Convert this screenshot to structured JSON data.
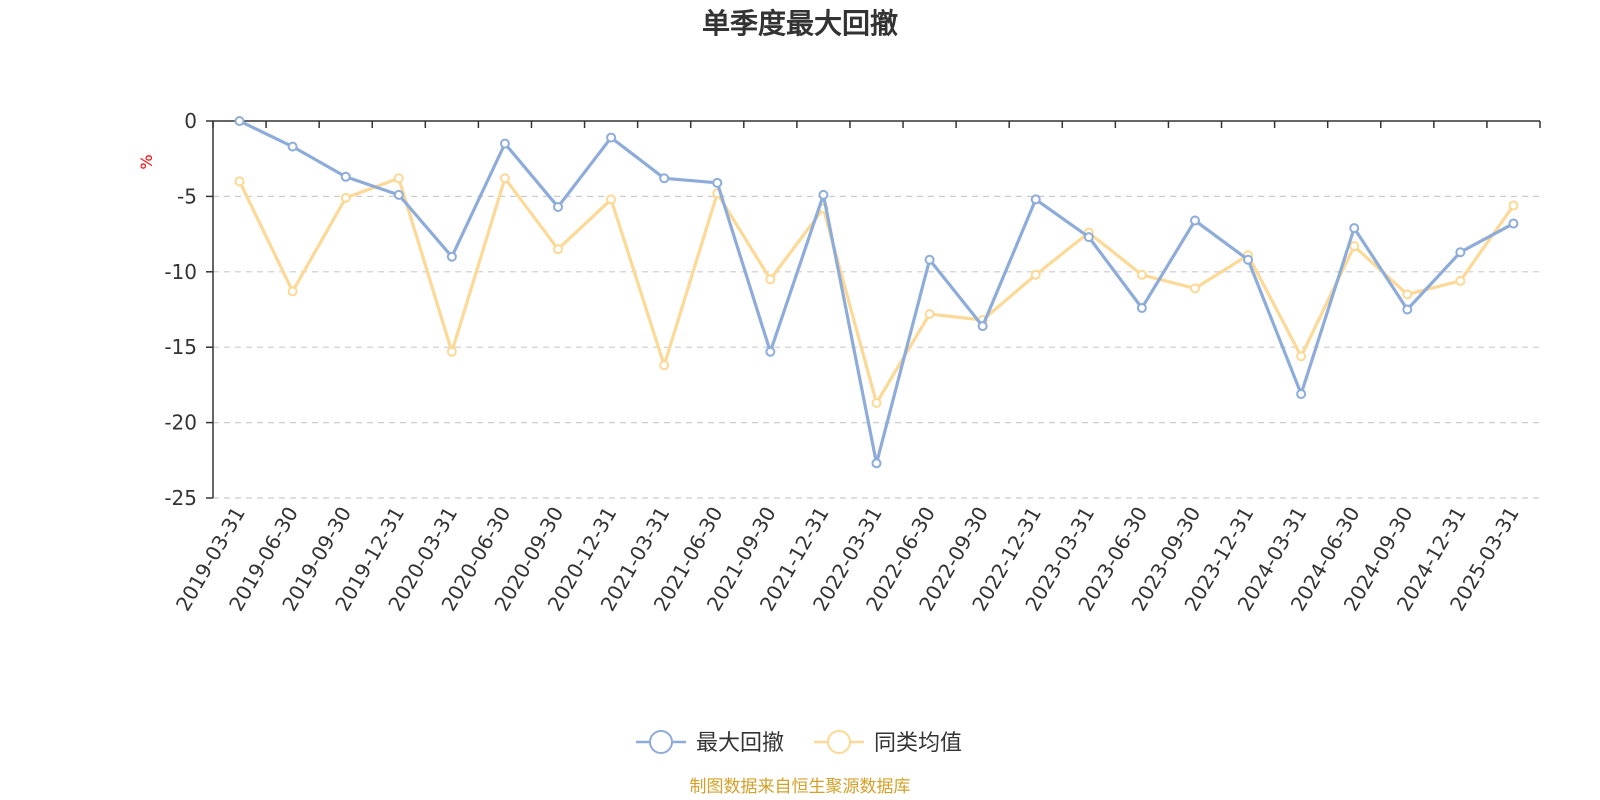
{
  "colors": {
    "series_a": "#8eacd9",
    "series_b": "#fcd996",
    "axis": "#333333",
    "grid": "#cccccc",
    "ylabel": "#ff0000",
    "source": "#d4a028"
  },
  "source_text": "制图数据来自恒生聚源数据库",
  "chart_data": {
    "type": "line",
    "title": "单季度最大回撤",
    "ylabel": "%",
    "xlabel": "",
    "ylim": [
      -25,
      0
    ],
    "yticks": [
      "0",
      "-5",
      "-10",
      "-15",
      "-20",
      "-25"
    ],
    "grid": true,
    "legend_position": "bottom-center",
    "categories": [
      "2019-03-31",
      "2019-06-30",
      "2019-09-30",
      "2019-12-31",
      "2020-03-31",
      "2020-06-30",
      "2020-09-30",
      "2020-12-31",
      "2021-03-31",
      "2021-06-30",
      "2021-09-30",
      "2021-12-31",
      "2022-03-31",
      "2022-06-30",
      "2022-09-30",
      "2022-12-31",
      "2023-03-31",
      "2023-06-30",
      "2023-09-30",
      "2023-12-31",
      "2024-03-31",
      "2024-06-30",
      "2024-09-30",
      "2024-12-31",
      "2025-03-31"
    ],
    "series": [
      {
        "name": "最大回撤",
        "values": [
          0,
          -1.7,
          -3.7,
          -4.9,
          -9.0,
          -1.5,
          -5.7,
          -1.1,
          -3.8,
          -4.1,
          -15.3,
          -4.9,
          -22.7,
          -9.2,
          -13.6,
          -5.2,
          -7.7,
          -12.4,
          -6.6,
          -9.2,
          -18.1,
          -7.1,
          -12.5,
          -8.7,
          -6.8
        ]
      },
      {
        "name": "同类均值",
        "values": [
          -4.0,
          -11.3,
          -5.1,
          -3.8,
          -15.3,
          -3.8,
          -8.5,
          -5.2,
          -16.2,
          -4.8,
          -10.5,
          -5.8,
          -18.7,
          -12.8,
          -13.2,
          -10.2,
          -7.4,
          -10.2,
          -11.1,
          -8.9,
          -15.6,
          -8.3,
          -11.5,
          -10.6,
          -5.6
        ]
      }
    ]
  }
}
